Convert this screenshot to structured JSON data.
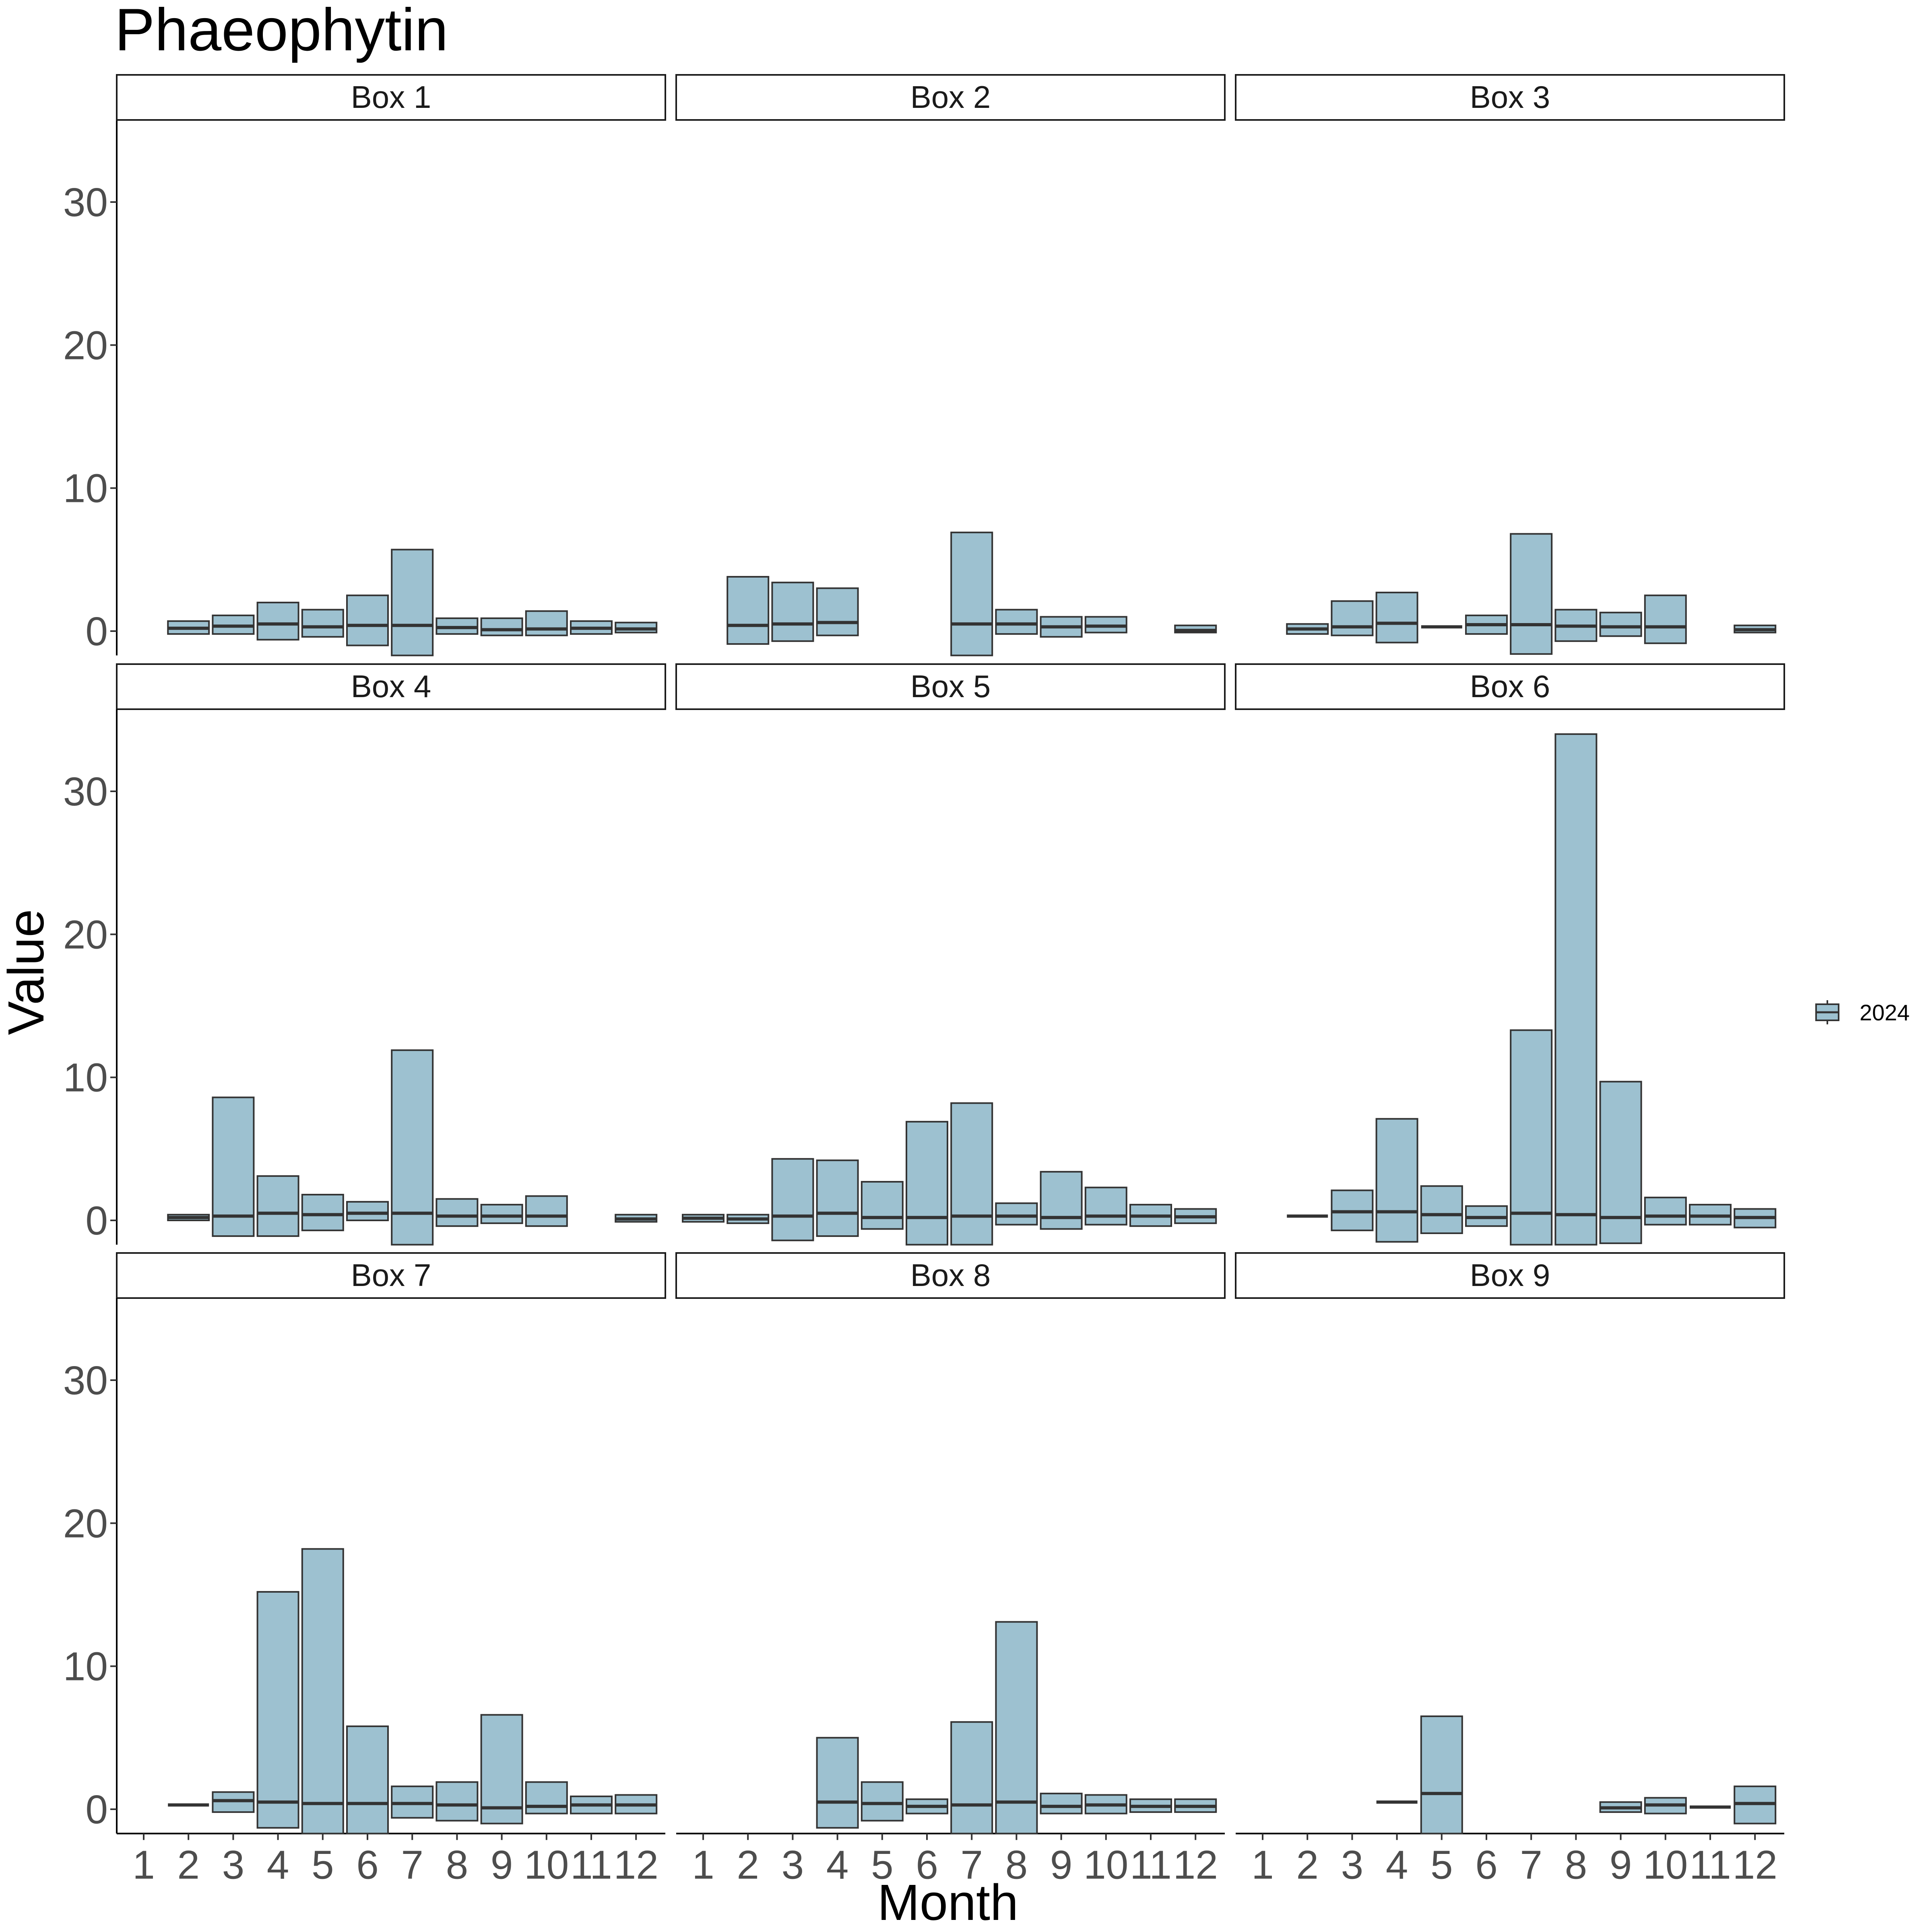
{
  "chart_data": {
    "type": "boxplot",
    "title": "Phaeophytin",
    "xlabel": "Month",
    "ylabel": "Value",
    "x_ticks": [
      "1",
      "2",
      "3",
      "4",
      "5",
      "6",
      "7",
      "8",
      "9",
      "10",
      "11",
      "12"
    ],
    "y_ticks": [
      0,
      10,
      20,
      30
    ],
    "ylim": [
      -1.7,
      35.5
    ],
    "legend": {
      "position": "right",
      "entries": [
        {
          "label": "2024",
          "color": "#9dc1d0"
        }
      ]
    },
    "fill_color": "#9dc1d0",
    "outline_color": "#333333",
    "panels": [
      {
        "name": "Box 1",
        "boxes": [
          {
            "month": 2,
            "lower": -0.2,
            "median": 0.2,
            "upper": 0.7
          },
          {
            "month": 3,
            "lower": -0.2,
            "median": 0.35,
            "upper": 1.1
          },
          {
            "month": 4,
            "lower": -0.6,
            "median": 0.5,
            "upper": 2.0
          },
          {
            "month": 5,
            "lower": -0.4,
            "median": 0.3,
            "upper": 1.5
          },
          {
            "month": 6,
            "lower": -1.0,
            "median": 0.4,
            "upper": 2.5
          },
          {
            "month": 7,
            "lower": -1.7,
            "median": 0.4,
            "upper": 5.7
          },
          {
            "month": 8,
            "lower": -0.2,
            "median": 0.25,
            "upper": 0.9
          },
          {
            "month": 9,
            "lower": -0.3,
            "median": 0.1,
            "upper": 0.9
          },
          {
            "month": 10,
            "lower": -0.3,
            "median": 0.15,
            "upper": 1.4
          },
          {
            "month": 11,
            "lower": -0.2,
            "median": 0.2,
            "upper": 0.7
          },
          {
            "month": 12,
            "lower": -0.1,
            "median": 0.15,
            "upper": 0.6
          }
        ]
      },
      {
        "name": "Box 2",
        "boxes": [
          {
            "month": 2,
            "lower": -0.9,
            "median": 0.4,
            "upper": 3.8
          },
          {
            "month": 3,
            "lower": -0.7,
            "median": 0.5,
            "upper": 3.4
          },
          {
            "month": 4,
            "lower": -0.3,
            "median": 0.6,
            "upper": 3.0
          },
          {
            "month": 7,
            "lower": -1.7,
            "median": 0.5,
            "upper": 6.9
          },
          {
            "month": 8,
            "lower": -0.2,
            "median": 0.5,
            "upper": 1.5
          },
          {
            "month": 9,
            "lower": -0.4,
            "median": 0.3,
            "upper": 1.0
          },
          {
            "month": 10,
            "lower": -0.1,
            "median": 0.35,
            "upper": 1.0
          },
          {
            "month": 12,
            "lower": -0.1,
            "median": 0.05,
            "upper": 0.4
          }
        ]
      },
      {
        "name": "Box 3",
        "boxes": [
          {
            "month": 2,
            "lower": -0.2,
            "median": 0.15,
            "upper": 0.5
          },
          {
            "month": 3,
            "lower": -0.3,
            "median": 0.3,
            "upper": 2.1
          },
          {
            "month": 4,
            "lower": -0.8,
            "median": 0.55,
            "upper": 2.7
          },
          {
            "month": 5,
            "lower": 0.3,
            "median": 0.3,
            "upper": 0.3
          },
          {
            "month": 6,
            "lower": -0.2,
            "median": 0.45,
            "upper": 1.1
          },
          {
            "month": 7,
            "lower": -1.6,
            "median": 0.45,
            "upper": 6.8
          },
          {
            "month": 8,
            "lower": -0.7,
            "median": 0.35,
            "upper": 1.5
          },
          {
            "month": 9,
            "lower": -0.35,
            "median": 0.3,
            "upper": 1.3
          },
          {
            "month": 10,
            "lower": -0.85,
            "median": 0.3,
            "upper": 2.5
          },
          {
            "month": 12,
            "lower": -0.1,
            "median": 0.1,
            "upper": 0.4
          }
        ]
      },
      {
        "name": "Box 4",
        "boxes": [
          {
            "month": 2,
            "lower": 0.0,
            "median": 0.2,
            "upper": 0.4
          },
          {
            "month": 3,
            "lower": -1.1,
            "median": 0.3,
            "upper": 8.6
          },
          {
            "month": 4,
            "lower": -1.1,
            "median": 0.5,
            "upper": 3.1
          },
          {
            "month": 5,
            "lower": -0.7,
            "median": 0.4,
            "upper": 1.8
          },
          {
            "month": 6,
            "lower": 0.0,
            "median": 0.5,
            "upper": 1.3
          },
          {
            "month": 7,
            "lower": -1.7,
            "median": 0.5,
            "upper": 11.9
          },
          {
            "month": 8,
            "lower": -0.4,
            "median": 0.3,
            "upper": 1.5
          },
          {
            "month": 9,
            "lower": -0.2,
            "median": 0.3,
            "upper": 1.1
          },
          {
            "month": 10,
            "lower": -0.4,
            "median": 0.3,
            "upper": 1.7
          },
          {
            "month": 12,
            "lower": -0.1,
            "median": 0.1,
            "upper": 0.4
          }
        ]
      },
      {
        "name": "Box 5",
        "boxes": [
          {
            "month": 1,
            "lower": -0.1,
            "median": 0.15,
            "upper": 0.4
          },
          {
            "month": 2,
            "lower": -0.2,
            "median": 0.1,
            "upper": 0.4
          },
          {
            "month": 3,
            "lower": -1.4,
            "median": 0.3,
            "upper": 4.3
          },
          {
            "month": 4,
            "lower": -1.1,
            "median": 0.5,
            "upper": 4.2
          },
          {
            "month": 5,
            "lower": -0.6,
            "median": 0.2,
            "upper": 2.7
          },
          {
            "month": 6,
            "lower": -1.7,
            "median": 0.2,
            "upper": 6.9
          },
          {
            "month": 7,
            "lower": -1.7,
            "median": 0.3,
            "upper": 8.2
          },
          {
            "month": 8,
            "lower": -0.3,
            "median": 0.3,
            "upper": 1.2
          },
          {
            "month": 9,
            "lower": -0.6,
            "median": 0.2,
            "upper": 3.4
          },
          {
            "month": 10,
            "lower": -0.3,
            "median": 0.3,
            "upper": 2.3
          },
          {
            "month": 11,
            "lower": -0.4,
            "median": 0.3,
            "upper": 1.1
          },
          {
            "month": 12,
            "lower": -0.2,
            "median": 0.25,
            "upper": 0.8
          }
        ]
      },
      {
        "name": "Box 6",
        "boxes": [
          {
            "month": 2,
            "lower": 0.3,
            "median": 0.3,
            "upper": 0.3
          },
          {
            "month": 3,
            "lower": -0.7,
            "median": 0.6,
            "upper": 2.1
          },
          {
            "month": 4,
            "lower": -1.5,
            "median": 0.6,
            "upper": 7.1
          },
          {
            "month": 5,
            "lower": -0.9,
            "median": 0.4,
            "upper": 2.4
          },
          {
            "month": 6,
            "lower": -0.4,
            "median": 0.2,
            "upper": 1.0
          },
          {
            "month": 7,
            "lower": -1.7,
            "median": 0.5,
            "upper": 13.3
          },
          {
            "month": 8,
            "lower": -1.7,
            "median": 0.4,
            "upper": 34.0
          },
          {
            "month": 9,
            "lower": -1.6,
            "median": 0.2,
            "upper": 9.7
          },
          {
            "month": 10,
            "lower": -0.3,
            "median": 0.3,
            "upper": 1.6
          },
          {
            "month": 11,
            "lower": -0.3,
            "median": 0.3,
            "upper": 1.1
          },
          {
            "month": 12,
            "lower": -0.5,
            "median": 0.2,
            "upper": 0.8
          }
        ]
      },
      {
        "name": "Box 7",
        "boxes": [
          {
            "month": 2,
            "lower": 0.3,
            "median": 0.3,
            "upper": 0.3
          },
          {
            "month": 3,
            "lower": -0.2,
            "median": 0.6,
            "upper": 1.2
          },
          {
            "month": 4,
            "lower": -1.3,
            "median": 0.5,
            "upper": 15.2
          },
          {
            "month": 5,
            "lower": -1.7,
            "median": 0.4,
            "upper": 18.2
          },
          {
            "month": 6,
            "lower": -1.7,
            "median": 0.4,
            "upper": 5.8
          },
          {
            "month": 7,
            "lower": -0.6,
            "median": 0.4,
            "upper": 1.6
          },
          {
            "month": 8,
            "lower": -0.8,
            "median": 0.3,
            "upper": 1.9
          },
          {
            "month": 9,
            "lower": -1.0,
            "median": 0.1,
            "upper": 6.6
          },
          {
            "month": 10,
            "lower": -0.3,
            "median": 0.2,
            "upper": 1.9
          },
          {
            "month": 11,
            "lower": -0.3,
            "median": 0.3,
            "upper": 0.9
          },
          {
            "month": 12,
            "lower": -0.3,
            "median": 0.3,
            "upper": 1.0
          }
        ]
      },
      {
        "name": "Box 8",
        "boxes": [
          {
            "month": 4,
            "lower": -1.3,
            "median": 0.5,
            "upper": 5.0
          },
          {
            "month": 5,
            "lower": -0.8,
            "median": 0.4,
            "upper": 1.9
          },
          {
            "month": 6,
            "lower": -0.3,
            "median": 0.2,
            "upper": 0.7
          },
          {
            "month": 7,
            "lower": -1.7,
            "median": 0.3,
            "upper": 6.1
          },
          {
            "month": 8,
            "lower": -1.7,
            "median": 0.5,
            "upper": 13.1
          },
          {
            "month": 9,
            "lower": -0.3,
            "median": 0.2,
            "upper": 1.1
          },
          {
            "month": 10,
            "lower": -0.3,
            "median": 0.3,
            "upper": 1.0
          },
          {
            "month": 11,
            "lower": -0.2,
            "median": 0.2,
            "upper": 0.7
          },
          {
            "month": 12,
            "lower": -0.2,
            "median": 0.2,
            "upper": 0.7
          }
        ]
      },
      {
        "name": "Box 9",
        "boxes": [
          {
            "month": 4,
            "lower": 0.5,
            "median": 0.5,
            "upper": 0.5
          },
          {
            "month": 5,
            "lower": -1.7,
            "median": 1.1,
            "upper": 6.5
          },
          {
            "month": 9,
            "lower": -0.2,
            "median": 0.1,
            "upper": 0.5
          },
          {
            "month": 10,
            "lower": -0.3,
            "median": 0.3,
            "upper": 0.8
          },
          {
            "month": 11,
            "lower": 0.15,
            "median": 0.15,
            "upper": 0.15
          },
          {
            "month": 12,
            "lower": -1.0,
            "median": 0.4,
            "upper": 1.6
          }
        ]
      }
    ]
  }
}
